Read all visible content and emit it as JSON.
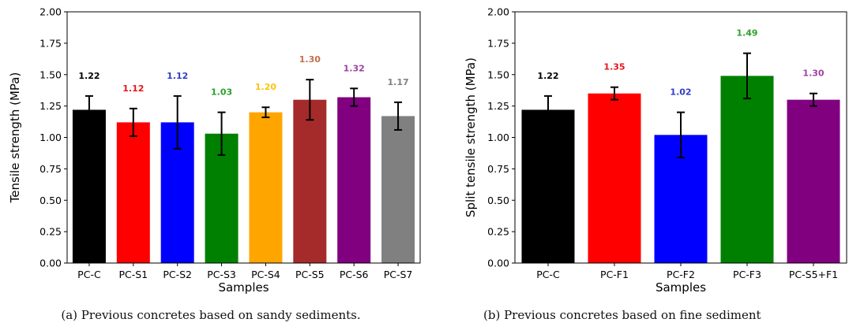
{
  "chart_data": [
    {
      "type": "bar",
      "title": "",
      "xlabel": "Samples",
      "ylabel": "Tensile strength (MPa)",
      "ylim": [
        0,
        2.0
      ],
      "yticks": [
        "0.00",
        "0.25",
        "0.50",
        "0.75",
        "1.00",
        "1.25",
        "1.50",
        "1.75",
        "2.00"
      ],
      "grid": false,
      "categories": [
        "PC-C",
        "PC-S1",
        "PC-S2",
        "PC-S3",
        "PC-S4",
        "PC-S5",
        "PC-S6",
        "PC-S7"
      ],
      "values": [
        1.22,
        1.12,
        1.12,
        1.03,
        1.2,
        1.3,
        1.32,
        1.17
      ],
      "value_labels": [
        "1.22",
        "1.12",
        "1.12",
        "1.03",
        "1.20",
        "1.30",
        "1.32",
        "1.17"
      ],
      "errors": [
        0.11,
        0.11,
        0.21,
        0.17,
        0.04,
        0.16,
        0.07,
        0.11
      ],
      "colors": [
        "#000000",
        "#ff0000",
        "#0000ff",
        "#008000",
        "#ffa500",
        "#a52a2a",
        "#800080",
        "#808080"
      ],
      "label_colors": [
        "#000000",
        "#e8141a",
        "#2e3ec8",
        "#2ca02c",
        "#ffc20e",
        "#c0704c",
        "#a040a0",
        "#808080"
      ],
      "caption": "(a) Previous concretes based on sandy sediments."
    },
    {
      "type": "bar",
      "title": "",
      "xlabel": "Samples",
      "ylabel": "Split tensile strength (MPa)",
      "ylim": [
        0,
        2.0
      ],
      "yticks": [
        "0.00",
        "0.25",
        "0.50",
        "0.75",
        "1.00",
        "1.25",
        "1.50",
        "1.75",
        "2.00"
      ],
      "grid": false,
      "categories": [
        "PC-C",
        "PC-F1",
        "PC-F2",
        "PC-F3",
        "PC-S5+F1"
      ],
      "values": [
        1.22,
        1.35,
        1.02,
        1.49,
        1.3
      ],
      "value_labels": [
        "1.22",
        "1.35",
        "1.02",
        "1.49",
        "1.30"
      ],
      "errors": [
        0.11,
        0.05,
        0.18,
        0.18,
        0.05
      ],
      "colors": [
        "#000000",
        "#ff0000",
        "#0000ff",
        "#008000",
        "#800080"
      ],
      "label_colors": [
        "#000000",
        "#e8141a",
        "#2e3ec8",
        "#2ca02c",
        "#a040a0"
      ],
      "caption": "(b) Previous concretes based on fine sediment"
    }
  ]
}
